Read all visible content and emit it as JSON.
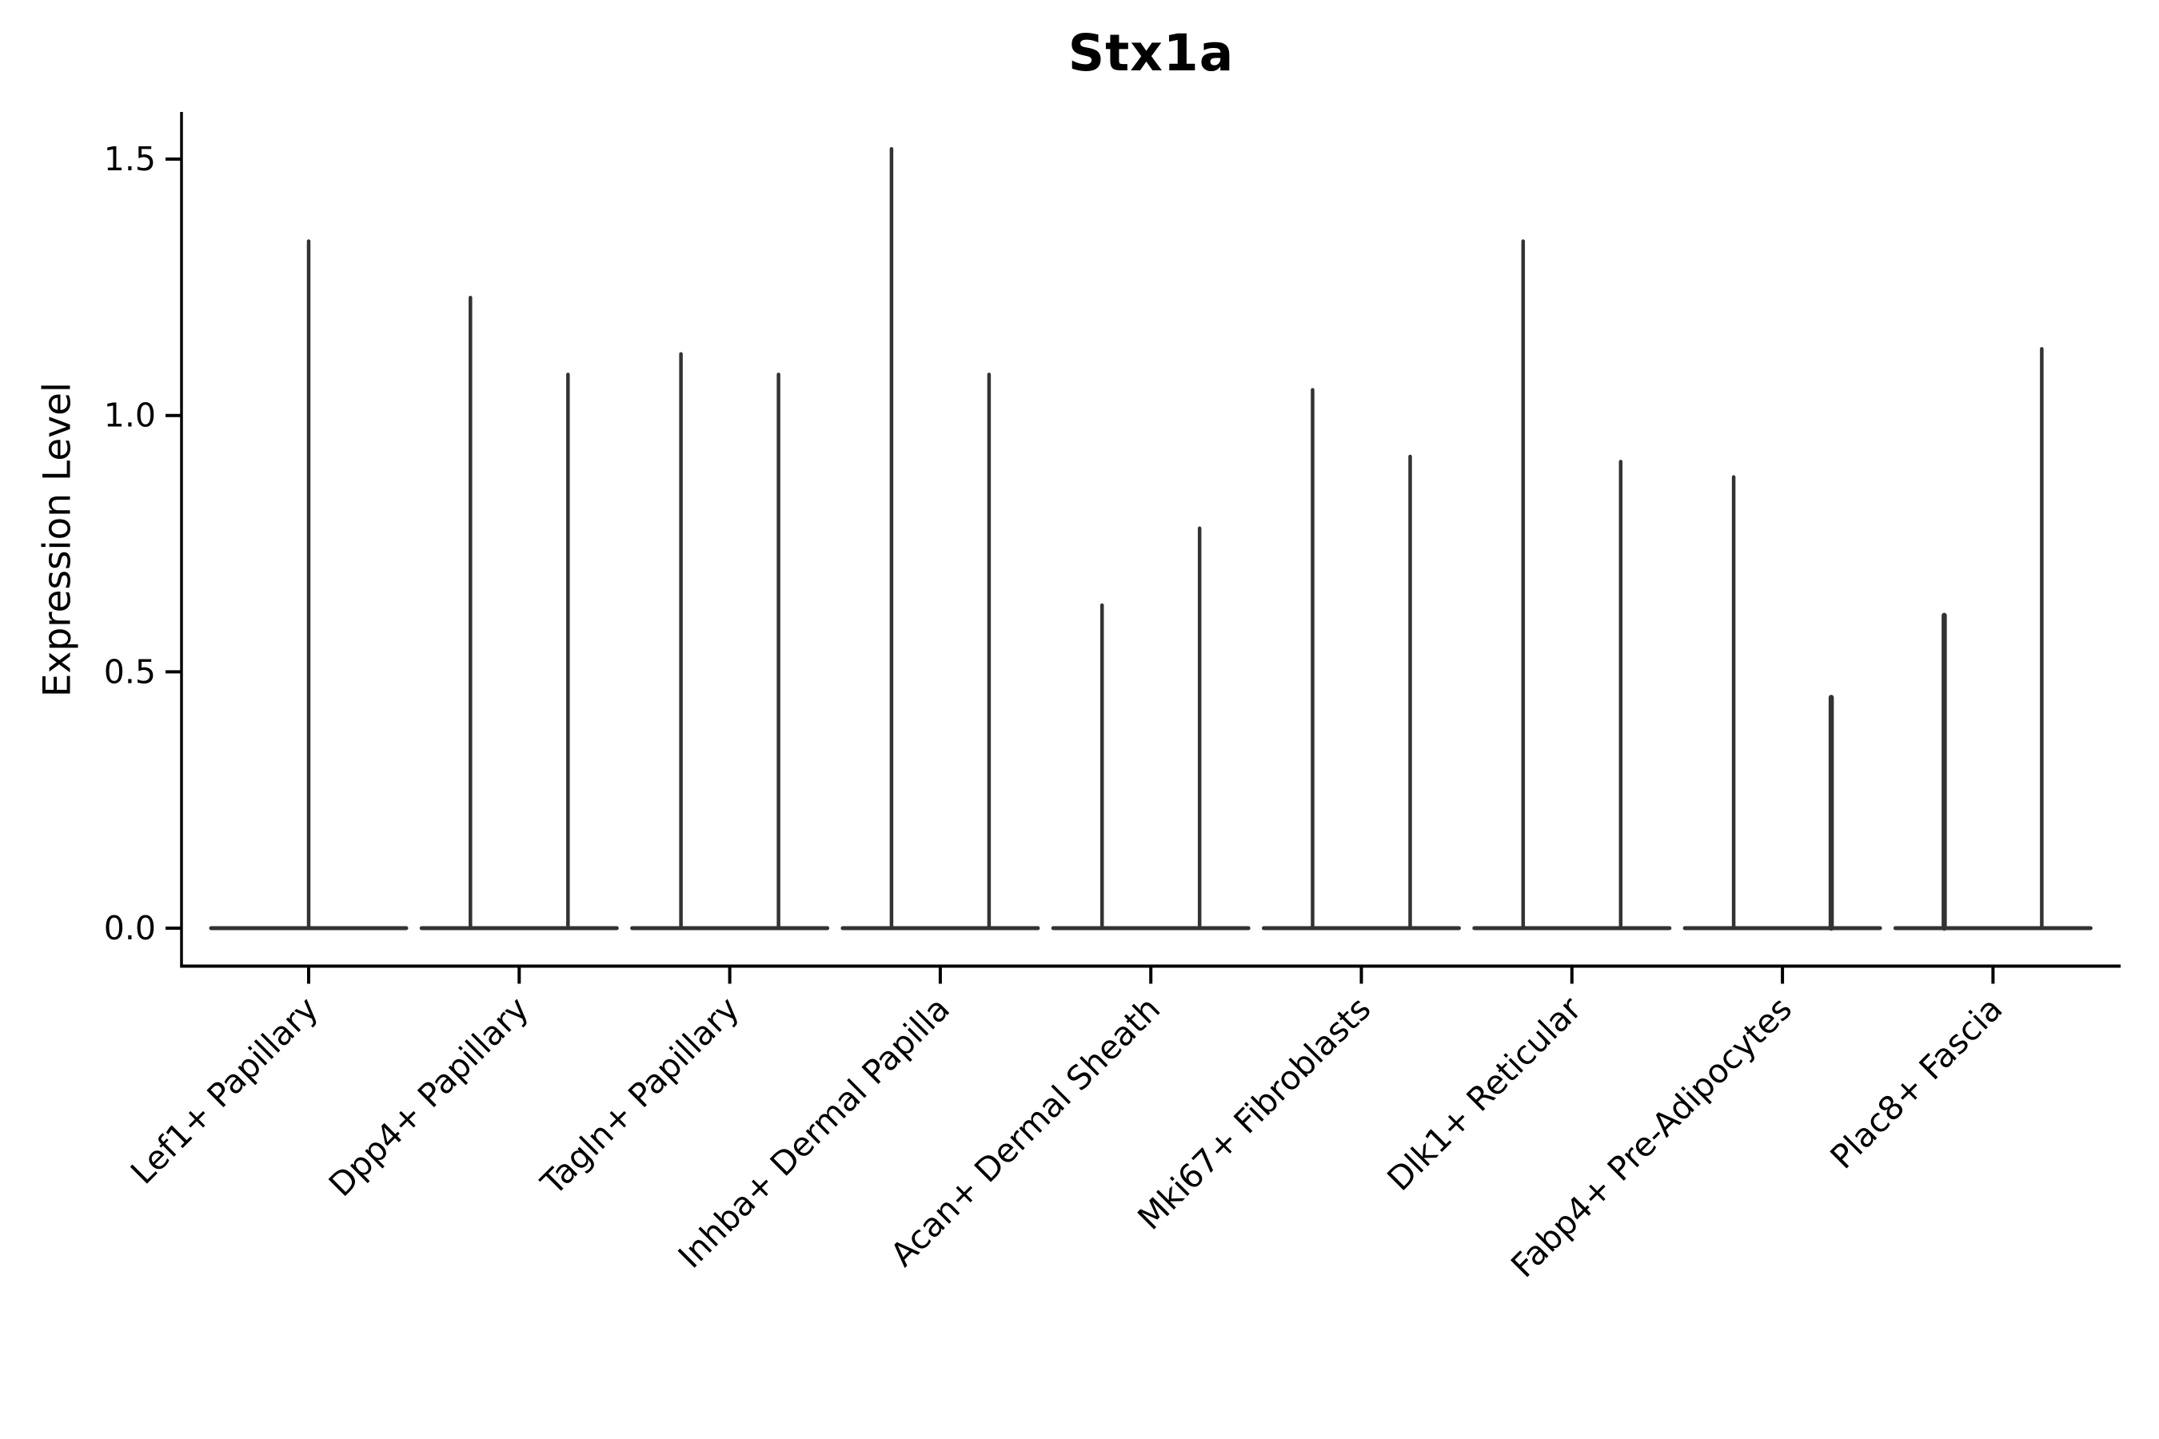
{
  "figure": {
    "title": "Stx1a",
    "ylabel": "Expression Level"
  },
  "colors": {
    "background": "#ffffff",
    "axis": "#000000",
    "text": "#000000",
    "violin": "#333333"
  },
  "chart_data": {
    "type": "violin",
    "title": "Stx1a",
    "xlabel": "",
    "ylabel": "Expression Level",
    "ylim": [
      -0.07,
      1.6
    ],
    "yticks": [
      0,
      0.5,
      1.0,
      1.5
    ],
    "ytick_labels": [
      "0.0",
      "0.5",
      "1.0",
      "1.5"
    ],
    "grid": false,
    "legend": "none",
    "baseline_value": 0.0,
    "categories": [
      "Lef1+ Papillary",
      "Dpp4+ Papillary",
      "Tagln+ Papillary",
      "Inhba+ Dermal Papilla",
      "Acan+ Dermal Sheath",
      "Mki67+ Fibroblasts",
      "Dlk1+ Reticular",
      "Fabp4+ Pre-Adipocytes",
      "Plac8+ Fascia"
    ],
    "groups": [
      {
        "category": "Lef1+ Papillary",
        "violins": [
          {
            "dodge": 0,
            "max": 1.34
          }
        ]
      },
      {
        "category": "Dpp4+ Papillary",
        "violins": [
          {
            "dodge": -1,
            "max": 1.23
          },
          {
            "dodge": 1,
            "max": 1.08
          }
        ]
      },
      {
        "category": "Tagln+ Papillary",
        "violins": [
          {
            "dodge": -1,
            "max": 1.12
          },
          {
            "dodge": 1,
            "max": 1.08
          }
        ]
      },
      {
        "category": "Inhba+ Dermal Papilla",
        "violins": [
          {
            "dodge": -1,
            "max": 1.52
          },
          {
            "dodge": 1,
            "max": 1.08
          }
        ]
      },
      {
        "category": "Acan+ Dermal Sheath",
        "violins": [
          {
            "dodge": -1,
            "max": 0.63
          },
          {
            "dodge": 1,
            "max": 0.78
          }
        ]
      },
      {
        "category": "Mki67+ Fibroblasts",
        "violins": [
          {
            "dodge": -1,
            "max": 1.05
          },
          {
            "dodge": 1,
            "max": 0.92
          }
        ]
      },
      {
        "category": "Dlk1+ Reticular",
        "violins": [
          {
            "dodge": -1,
            "max": 1.34
          },
          {
            "dodge": 1,
            "max": 0.91
          }
        ]
      },
      {
        "category": "Fabp4+ Pre-Adipocytes",
        "violins": [
          {
            "dodge": -1,
            "max": 0.88
          },
          {
            "dodge": 1,
            "max": 0.45,
            "thick": true
          }
        ]
      },
      {
        "category": "Plac8+ Fascia",
        "violins": [
          {
            "dodge": -1,
            "max": 0.61,
            "thick": true
          },
          {
            "dodge": 1,
            "max": 1.13
          }
        ]
      }
    ]
  }
}
